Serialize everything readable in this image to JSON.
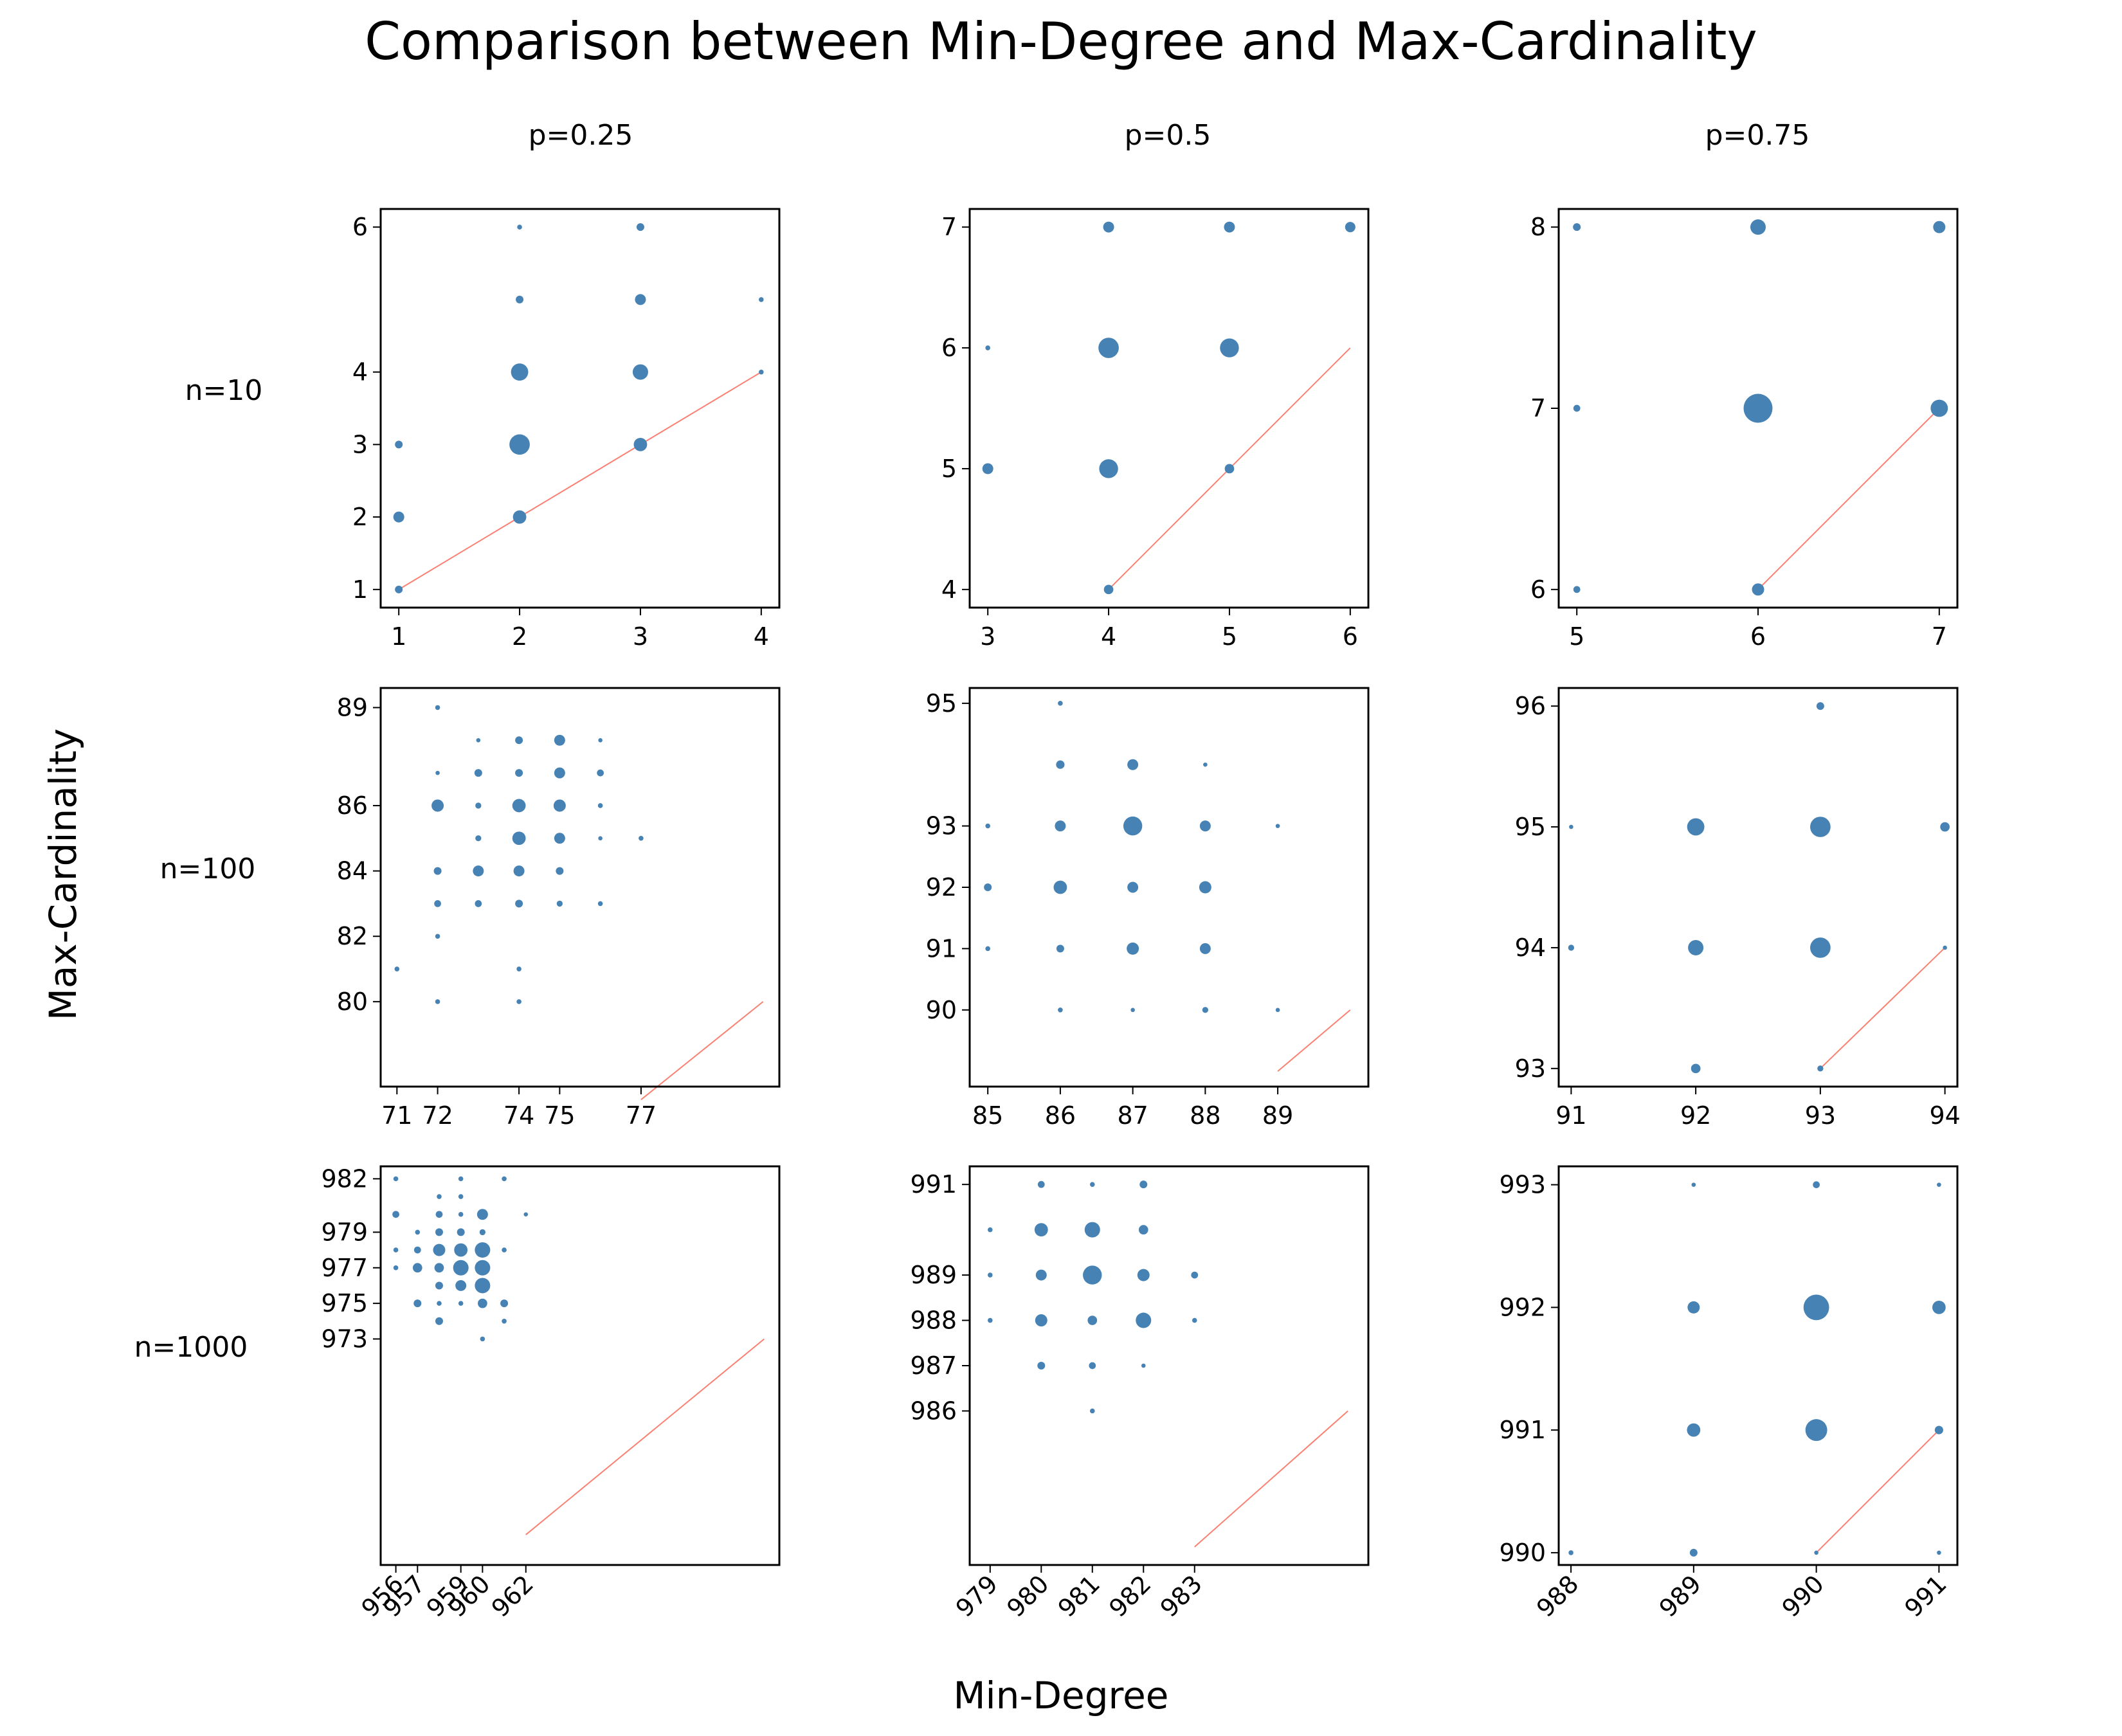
{
  "title": "Comparison between Min-Degree and Max-Cardinality",
  "xlabel": "Min-Degree",
  "ylabel": "Max-Cardinality",
  "col_labels": [
    "p=0.25",
    "p=0.5",
    "p=0.75"
  ],
  "row_labels": [
    "n=10",
    "n=100",
    "n=1000"
  ],
  "colors": {
    "points": "#4682b4",
    "diagonal": "#fa8072"
  },
  "chart_data": [
    {
      "type": "scatter",
      "title": "n=10, p=0.25",
      "xlim": [
        0.85,
        4.15
      ],
      "ylim": [
        0.75,
        6.25
      ],
      "xticks": [
        1,
        2,
        3,
        4
      ],
      "yticks": [
        1,
        2,
        3,
        4,
        6
      ],
      "diagonal": [
        1,
        4
      ],
      "points": [
        {
          "x": 1,
          "y": 1,
          "count": 1
        },
        {
          "x": 1,
          "y": 2,
          "count": 2
        },
        {
          "x": 1,
          "y": 3,
          "count": 1
        },
        {
          "x": 2,
          "y": 2,
          "count": 3
        },
        {
          "x": 2,
          "y": 3,
          "count": 7
        },
        {
          "x": 2,
          "y": 4,
          "count": 5
        },
        {
          "x": 2,
          "y": 5,
          "count": 1
        },
        {
          "x": 2,
          "y": 6,
          "count": 0.4
        },
        {
          "x": 3,
          "y": 3,
          "count": 3
        },
        {
          "x": 3,
          "y": 4,
          "count": 4
        },
        {
          "x": 3,
          "y": 5,
          "count": 2
        },
        {
          "x": 3,
          "y": 6,
          "count": 1
        },
        {
          "x": 4,
          "y": 4,
          "count": 0.4
        },
        {
          "x": 4,
          "y": 5,
          "count": 0.4
        }
      ]
    },
    {
      "type": "scatter",
      "title": "n=10, p=0.5",
      "xlim": [
        2.85,
        6.15
      ],
      "ylim": [
        3.85,
        7.15
      ],
      "xticks": [
        3,
        4,
        5,
        6
      ],
      "yticks": [
        4,
        5,
        6,
        7
      ],
      "diagonal": [
        4,
        6
      ],
      "points": [
        {
          "x": 3,
          "y": 5,
          "count": 2
        },
        {
          "x": 3,
          "y": 6,
          "count": 0.4
        },
        {
          "x": 4,
          "y": 4,
          "count": 1.5
        },
        {
          "x": 4,
          "y": 5,
          "count": 6
        },
        {
          "x": 4,
          "y": 6,
          "count": 7
        },
        {
          "x": 4,
          "y": 7,
          "count": 2
        },
        {
          "x": 5,
          "y": 5,
          "count": 1.5
        },
        {
          "x": 5,
          "y": 6,
          "count": 6
        },
        {
          "x": 5,
          "y": 7,
          "count": 2
        },
        {
          "x": 6,
          "y": 7,
          "count": 1.8
        }
      ]
    },
    {
      "type": "scatter",
      "title": "n=10, p=0.75",
      "xlim": [
        4.9,
        7.1
      ],
      "ylim": [
        5.9,
        8.1
      ],
      "xticks": [
        5,
        6,
        7
      ],
      "yticks": [
        6,
        7,
        8
      ],
      "diagonal": [
        6,
        7
      ],
      "points": [
        {
          "x": 5,
          "y": 6,
          "count": 0.8
        },
        {
          "x": 5,
          "y": 7,
          "count": 0.8
        },
        {
          "x": 5,
          "y": 8,
          "count": 1
        },
        {
          "x": 6,
          "y": 6,
          "count": 2.5
        },
        {
          "x": 6,
          "y": 7,
          "count": 14
        },
        {
          "x": 6,
          "y": 8,
          "count": 4
        },
        {
          "x": 7,
          "y": 7,
          "count": 5
        },
        {
          "x": 7,
          "y": 8,
          "count": 2.5
        }
      ]
    },
    {
      "type": "scatter",
      "title": "n=100, p=0.25",
      "xlim": [
        70.6,
        80.4
      ],
      "ylim": [
        77.4,
        89.6
      ],
      "xticks": [
        71,
        72,
        74,
        75,
        77
      ],
      "yticks": [
        80,
        82,
        84,
        86,
        89
      ],
      "diagonal": [
        77,
        80
      ],
      "points": [
        {
          "x": 71,
          "y": 81,
          "count": 0.4
        },
        {
          "x": 72,
          "y": 80,
          "count": 0.4
        },
        {
          "x": 72,
          "y": 82,
          "count": 0.4
        },
        {
          "x": 72,
          "y": 83,
          "count": 0.8
        },
        {
          "x": 72,
          "y": 84,
          "count": 1
        },
        {
          "x": 72,
          "y": 86,
          "count": 2.5
        },
        {
          "x": 72,
          "y": 87,
          "count": 0.3
        },
        {
          "x": 72,
          "y": 89,
          "count": 0.4
        },
        {
          "x": 73,
          "y": 83,
          "count": 0.8
        },
        {
          "x": 73,
          "y": 84,
          "count": 2
        },
        {
          "x": 73,
          "y": 85,
          "count": 0.6
        },
        {
          "x": 73,
          "y": 86,
          "count": 0.6
        },
        {
          "x": 73,
          "y": 87,
          "count": 1
        },
        {
          "x": 73,
          "y": 88,
          "count": 0.3
        },
        {
          "x": 74,
          "y": 80,
          "count": 0.4
        },
        {
          "x": 74,
          "y": 81,
          "count": 0.4
        },
        {
          "x": 74,
          "y": 83,
          "count": 1
        },
        {
          "x": 74,
          "y": 84,
          "count": 2
        },
        {
          "x": 74,
          "y": 85,
          "count": 3
        },
        {
          "x": 74,
          "y": 86,
          "count": 3
        },
        {
          "x": 74,
          "y": 87,
          "count": 1
        },
        {
          "x": 74,
          "y": 88,
          "count": 1
        },
        {
          "x": 75,
          "y": 83,
          "count": 0.6
        },
        {
          "x": 75,
          "y": 84,
          "count": 1
        },
        {
          "x": 75,
          "y": 85,
          "count": 2
        },
        {
          "x": 75,
          "y": 86,
          "count": 2.5
        },
        {
          "x": 75,
          "y": 87,
          "count": 2
        },
        {
          "x": 75,
          "y": 88,
          "count": 2
        },
        {
          "x": 76,
          "y": 83,
          "count": 0.4
        },
        {
          "x": 76,
          "y": 85,
          "count": 0.3
        },
        {
          "x": 76,
          "y": 86,
          "count": 0.4
        },
        {
          "x": 76,
          "y": 87,
          "count": 0.8
        },
        {
          "x": 76,
          "y": 88,
          "count": 0.3
        },
        {
          "x": 77,
          "y": 85,
          "count": 0.4
        }
      ]
    },
    {
      "type": "scatter",
      "title": "n=100, p=0.5",
      "xlim": [
        84.75,
        90.25
      ],
      "ylim": [
        88.75,
        95.25
      ],
      "xticks": [
        85,
        86,
        87,
        88,
        89
      ],
      "yticks": [
        90,
        91,
        92,
        93,
        95
      ],
      "diagonal": [
        89,
        90
      ],
      "points": [
        {
          "x": 85,
          "y": 91,
          "count": 0.4
        },
        {
          "x": 85,
          "y": 92,
          "count": 1
        },
        {
          "x": 85,
          "y": 93,
          "count": 0.4
        },
        {
          "x": 86,
          "y": 90,
          "count": 0.4
        },
        {
          "x": 86,
          "y": 91,
          "count": 1
        },
        {
          "x": 86,
          "y": 92,
          "count": 3
        },
        {
          "x": 86,
          "y": 93,
          "count": 2
        },
        {
          "x": 86,
          "y": 94,
          "count": 1.2
        },
        {
          "x": 86,
          "y": 95,
          "count": 0.4
        },
        {
          "x": 87,
          "y": 90,
          "count": 0.3
        },
        {
          "x": 87,
          "y": 91,
          "count": 2.5
        },
        {
          "x": 87,
          "y": 92,
          "count": 2
        },
        {
          "x": 87,
          "y": 93,
          "count": 6
        },
        {
          "x": 87,
          "y": 94,
          "count": 2
        },
        {
          "x": 88,
          "y": 90,
          "count": 0.6
        },
        {
          "x": 88,
          "y": 91,
          "count": 2
        },
        {
          "x": 88,
          "y": 92,
          "count": 2.5
        },
        {
          "x": 88,
          "y": 93,
          "count": 2
        },
        {
          "x": 88,
          "y": 94,
          "count": 0.3
        },
        {
          "x": 89,
          "y": 90,
          "count": 0.3
        },
        {
          "x": 89,
          "y": 93,
          "count": 0.3
        }
      ]
    },
    {
      "type": "scatter",
      "title": "n=100, p=0.75",
      "xlim": [
        90.9,
        94.1
      ],
      "ylim": [
        92.85,
        96.15
      ],
      "xticks": [
        91,
        92,
        93,
        94
      ],
      "yticks": [
        93,
        94,
        95,
        96
      ],
      "diagonal": [
        93,
        94
      ],
      "points": [
        {
          "x": 91,
          "y": 94,
          "count": 0.6
        },
        {
          "x": 91,
          "y": 95,
          "count": 0.3
        },
        {
          "x": 92,
          "y": 93,
          "count": 1.5
        },
        {
          "x": 92,
          "y": 94,
          "count": 4
        },
        {
          "x": 92,
          "y": 95,
          "count": 5
        },
        {
          "x": 93,
          "y": 93,
          "count": 0.6
        },
        {
          "x": 93,
          "y": 94,
          "count": 7
        },
        {
          "x": 93,
          "y": 95,
          "count": 7
        },
        {
          "x": 93,
          "y": 96,
          "count": 1
        },
        {
          "x": 94,
          "y": 94,
          "count": 0.3
        },
        {
          "x": 94,
          "y": 95,
          "count": 1.5
        }
      ]
    },
    {
      "type": "scatter",
      "title": "n=1000, p=0.25",
      "xlim": [
        955.3,
        973.7
      ],
      "ylim": [
        960.3,
        982.7
      ],
      "xticks": [
        956,
        957,
        959,
        960,
        962
      ],
      "yticks": [
        973,
        975,
        977,
        979,
        982
      ],
      "diagonal": [
        962,
        973
      ],
      "points": [
        {
          "x": 956,
          "y": 977,
          "count": 0.4
        },
        {
          "x": 956,
          "y": 978,
          "count": 0.4
        },
        {
          "x": 956,
          "y": 980,
          "count": 0.8
        },
        {
          "x": 956,
          "y": 982,
          "count": 0.4
        },
        {
          "x": 957,
          "y": 975,
          "count": 1
        },
        {
          "x": 957,
          "y": 977,
          "count": 1.5
        },
        {
          "x": 957,
          "y": 978,
          "count": 0.8
        },
        {
          "x": 957,
          "y": 979,
          "count": 0.4
        },
        {
          "x": 958,
          "y": 974,
          "count": 1
        },
        {
          "x": 958,
          "y": 975,
          "count": 0.4
        },
        {
          "x": 958,
          "y": 976,
          "count": 1
        },
        {
          "x": 958,
          "y": 977,
          "count": 1.5
        },
        {
          "x": 958,
          "y": 978,
          "count": 2.5
        },
        {
          "x": 958,
          "y": 979,
          "count": 1
        },
        {
          "x": 958,
          "y": 980,
          "count": 0.8
        },
        {
          "x": 958,
          "y": 981,
          "count": 0.4
        },
        {
          "x": 959,
          "y": 975,
          "count": 0.4
        },
        {
          "x": 959,
          "y": 976,
          "count": 2
        },
        {
          "x": 959,
          "y": 977,
          "count": 4
        },
        {
          "x": 959,
          "y": 978,
          "count": 3
        },
        {
          "x": 959,
          "y": 979,
          "count": 1
        },
        {
          "x": 959,
          "y": 980,
          "count": 0.4
        },
        {
          "x": 959,
          "y": 981,
          "count": 0.4
        },
        {
          "x": 959,
          "y": 982,
          "count": 0.4
        },
        {
          "x": 960,
          "y": 973,
          "count": 0.4
        },
        {
          "x": 960,
          "y": 975,
          "count": 1.5
        },
        {
          "x": 960,
          "y": 976,
          "count": 4
        },
        {
          "x": 960,
          "y": 977,
          "count": 4
        },
        {
          "x": 960,
          "y": 978,
          "count": 4
        },
        {
          "x": 960,
          "y": 979,
          "count": 0.6
        },
        {
          "x": 960,
          "y": 980,
          "count": 2
        },
        {
          "x": 961,
          "y": 974,
          "count": 0.4
        },
        {
          "x": 961,
          "y": 975,
          "count": 1
        },
        {
          "x": 961,
          "y": 978,
          "count": 0.4
        },
        {
          "x": 961,
          "y": 982,
          "count": 0.4
        },
        {
          "x": 962,
          "y": 980,
          "count": 0.3
        }
      ]
    },
    {
      "type": "scatter",
      "title": "n=1000, p=0.5",
      "xlim": [
        978.6,
        986.4
      ],
      "ylim": [
        982.6,
        991.4
      ],
      "xticks": [
        979,
        980,
        981,
        982,
        983
      ],
      "yticks": [
        986,
        987,
        988,
        989,
        991
      ],
      "diagonal": [
        983,
        986
      ],
      "points": [
        {
          "x": 979,
          "y": 988,
          "count": 0.4
        },
        {
          "x": 979,
          "y": 989,
          "count": 0.4
        },
        {
          "x": 979,
          "y": 990,
          "count": 0.4
        },
        {
          "x": 980,
          "y": 987,
          "count": 1
        },
        {
          "x": 980,
          "y": 988,
          "count": 2.5
        },
        {
          "x": 980,
          "y": 989,
          "count": 2
        },
        {
          "x": 980,
          "y": 990,
          "count": 3
        },
        {
          "x": 980,
          "y": 991,
          "count": 0.8
        },
        {
          "x": 981,
          "y": 986,
          "count": 0.4
        },
        {
          "x": 981,
          "y": 987,
          "count": 0.8
        },
        {
          "x": 981,
          "y": 988,
          "count": 1.5
        },
        {
          "x": 981,
          "y": 989,
          "count": 6
        },
        {
          "x": 981,
          "y": 990,
          "count": 4
        },
        {
          "x": 981,
          "y": 991,
          "count": 0.4
        },
        {
          "x": 982,
          "y": 987,
          "count": 0.3
        },
        {
          "x": 982,
          "y": 988,
          "count": 4
        },
        {
          "x": 982,
          "y": 989,
          "count": 2.5
        },
        {
          "x": 982,
          "y": 990,
          "count": 1.5
        },
        {
          "x": 982,
          "y": 991,
          "count": 1
        },
        {
          "x": 983,
          "y": 988,
          "count": 0.4
        },
        {
          "x": 983,
          "y": 989,
          "count": 0.8
        }
      ]
    },
    {
      "type": "scatter",
      "title": "n=1000, p=0.75",
      "xlim": [
        987.9,
        991.15
      ],
      "ylim": [
        989.9,
        993.15
      ],
      "xticks": [
        988,
        989,
        990,
        991
      ],
      "yticks": [
        990,
        991,
        992,
        993
      ],
      "diagonal": [
        990,
        991
      ],
      "points": [
        {
          "x": 988,
          "y": 990,
          "count": 0.4
        },
        {
          "x": 989,
          "y": 990,
          "count": 1
        },
        {
          "x": 989,
          "y": 991,
          "count": 3
        },
        {
          "x": 989,
          "y": 992,
          "count": 2.5
        },
        {
          "x": 989,
          "y": 993,
          "count": 0.3
        },
        {
          "x": 990,
          "y": 990,
          "count": 0.3
        },
        {
          "x": 990,
          "y": 991,
          "count": 8
        },
        {
          "x": 990,
          "y": 992,
          "count": 11
        },
        {
          "x": 990,
          "y": 993,
          "count": 0.8
        },
        {
          "x": 991,
          "y": 990,
          "count": 0.3
        },
        {
          "x": 991,
          "y": 991,
          "count": 1.2
        },
        {
          "x": 991,
          "y": 992,
          "count": 3
        },
        {
          "x": 991,
          "y": 993,
          "count": 0.3
        }
      ]
    }
  ]
}
